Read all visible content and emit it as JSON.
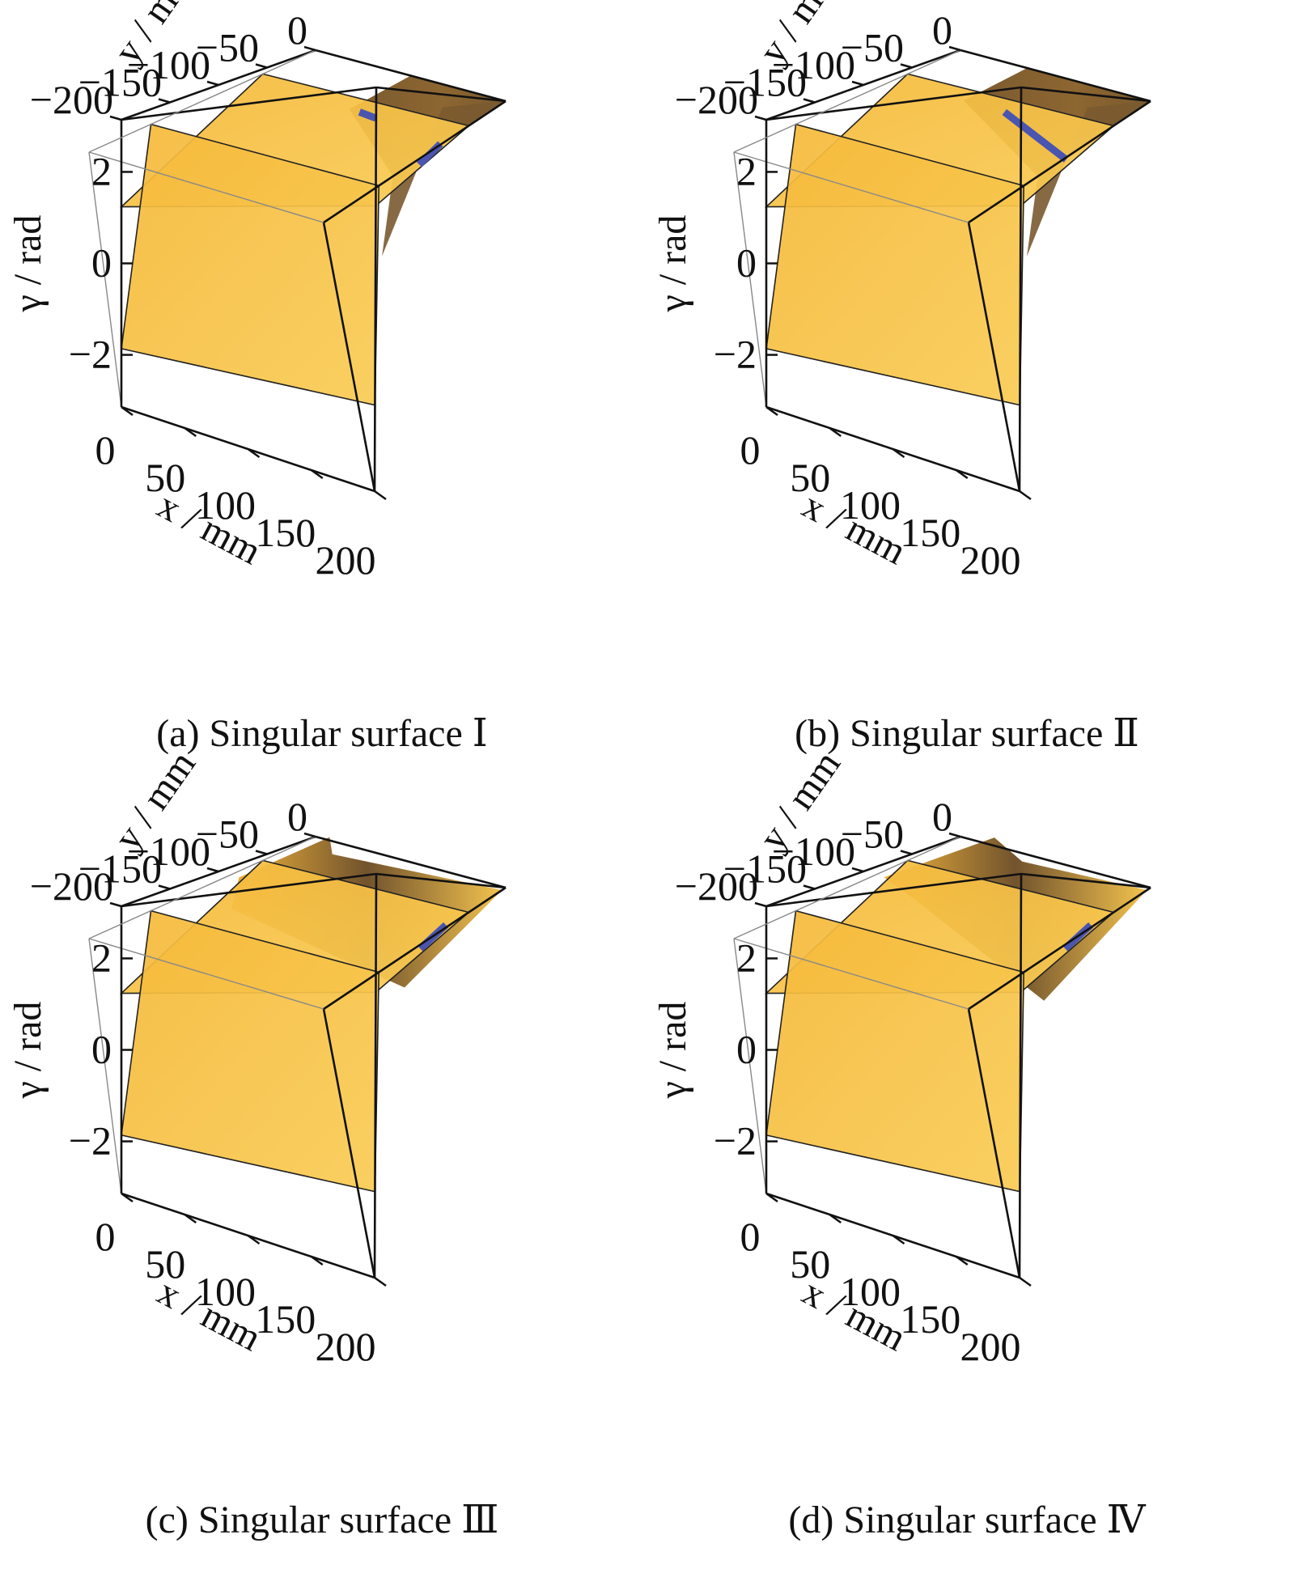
{
  "chart_data": [
    {
      "type": "surface3d",
      "caption": "(a) Singular surface Ⅰ",
      "variant": 1,
      "xlabel": "x / mm",
      "ylabel": "y / mm",
      "zlabel": "γ / rad",
      "xticks": [
        "0",
        "50",
        "100",
        "150",
        "200"
      ],
      "yticks": [
        "−200",
        "−150",
        "−100",
        "−50",
        "0"
      ],
      "zticks": [
        "2",
        "0",
        "−2"
      ],
      "xlim": [
        0,
        200
      ],
      "ylim": [
        -200,
        0
      ],
      "zlim": [
        -3.14,
        3.14
      ]
    },
    {
      "type": "surface3d",
      "caption": "(b) Singular surface Ⅱ",
      "variant": 2,
      "xlabel": "x / mm",
      "ylabel": "y / mm",
      "zlabel": "γ / rad",
      "xticks": [
        "0",
        "50",
        "100",
        "150",
        "200"
      ],
      "yticks": [
        "−200",
        "−150",
        "−100",
        "−50",
        "0"
      ],
      "zticks": [
        "2",
        "0",
        "−2"
      ],
      "xlim": [
        0,
        200
      ],
      "ylim": [
        -200,
        0
      ],
      "zlim": [
        -3.14,
        3.14
      ]
    },
    {
      "type": "surface3d",
      "caption": "(c) Singular surface Ⅲ",
      "variant": 3,
      "xlabel": "x / mm",
      "ylabel": "y / mm",
      "zlabel": "γ / rad",
      "xticks": [
        "0",
        "50",
        "100",
        "150",
        "200"
      ],
      "yticks": [
        "−200",
        "−150",
        "−100",
        "−50",
        "0"
      ],
      "zticks": [
        "2",
        "0",
        "−2"
      ],
      "xlim": [
        0,
        200
      ],
      "ylim": [
        -200,
        0
      ],
      "zlim": [
        -3.14,
        3.14
      ]
    },
    {
      "type": "surface3d",
      "caption": "(d) Singular surface Ⅳ",
      "variant": 4,
      "xlabel": "x / mm",
      "ylabel": "y / mm",
      "zlabel": "γ / rad",
      "xticks": [
        "0",
        "50",
        "100",
        "150",
        "200"
      ],
      "yticks": [
        "−200",
        "−150",
        "−100",
        "−50",
        "0"
      ],
      "zticks": [
        "2",
        "0",
        "−2"
      ],
      "xlim": [
        0,
        200
      ],
      "ylim": [
        -200,
        0
      ],
      "zlim": [
        -3.14,
        3.14
      ]
    }
  ],
  "colors": {
    "surface": "#f5b93a",
    "surface_light": "#f9cc55",
    "surface_dark": "#7a5a30",
    "singular_line": "#4a55b0",
    "box": "#111111"
  }
}
